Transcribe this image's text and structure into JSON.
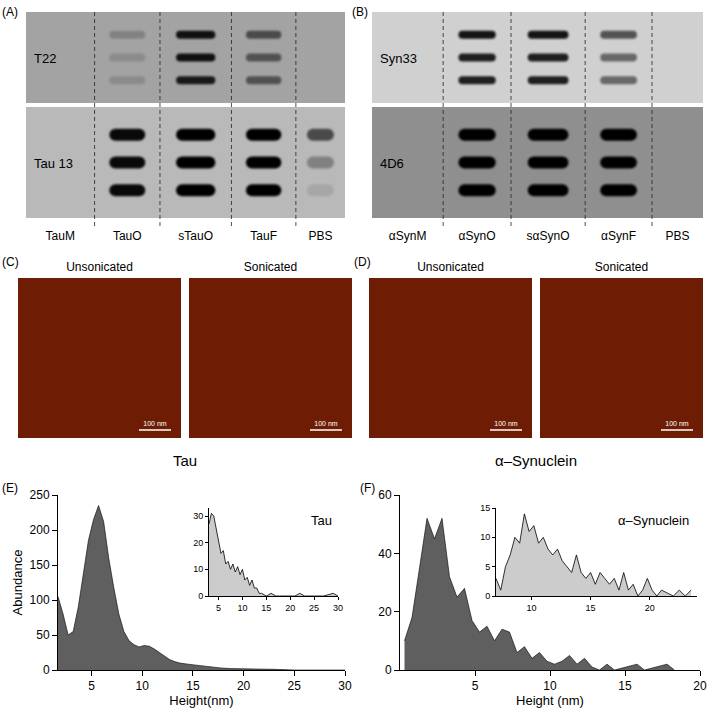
{
  "panels": {
    "A": {
      "label": "(A)",
      "columns": [
        "TauM",
        "TauO",
        "sTauO",
        "TauF",
        "PBS"
      ],
      "rows": [
        {
          "antibody": "T22",
          "intensity": [
            [
              0,
              0,
              0
            ],
            [
              0.2,
              0.15,
              0.15
            ],
            [
              0.9,
              0.9,
              0.85
            ],
            [
              0.55,
              0.5,
              0.5
            ],
            [
              0,
              0,
              0
            ]
          ]
        },
        {
          "antibody": "Tau 13",
          "intensity": [
            [
              0,
              0,
              0
            ],
            [
              0.95,
              0.95,
              0.95
            ],
            [
              1,
              1,
              1
            ],
            [
              1,
              1,
              1
            ],
            [
              0.6,
              0.3,
              0.1
            ]
          ]
        }
      ]
    },
    "B": {
      "label": "(B)",
      "columns": [
        "αSynM",
        "αSynO",
        "sαSynO",
        "αSynF",
        "PBS"
      ],
      "rows": [
        {
          "antibody": "Syn33",
          "intensity": [
            [
              0,
              0,
              0
            ],
            [
              0.9,
              0.85,
              0.85
            ],
            [
              0.9,
              0.85,
              0.85
            ],
            [
              0.6,
              0.5,
              0.5
            ],
            [
              0,
              0,
              0
            ]
          ]
        },
        {
          "antibody": "4D6",
          "intensity": [
            [
              0,
              0,
              0
            ],
            [
              1,
              1,
              1
            ],
            [
              1,
              1,
              1
            ],
            [
              1,
              1,
              1
            ],
            [
              0,
              0,
              0
            ]
          ]
        }
      ]
    },
    "C": {
      "label": "(C)",
      "title": "Tau",
      "images": [
        {
          "title": "Unsonicated",
          "scale_bar": "100 nm"
        },
        {
          "title": "Sonicated",
          "scale_bar": "100 nm"
        }
      ]
    },
    "D": {
      "label": "(D)",
      "title": "α–Synuclein",
      "images": [
        {
          "title": "Unsonicated",
          "scale_bar": "100 nm"
        },
        {
          "title": "Sonicated",
          "scale_bar": "100 nm"
        }
      ]
    }
  },
  "chart_data": [
    {
      "type": "area",
      "panel_label": "(E)",
      "x_label": "Height(nm)",
      "y_label": "Abundance",
      "x": [
        1.7,
        2.2,
        2.7,
        3.2,
        3.7,
        4.2,
        4.7,
        5.2,
        5.7,
        6.2,
        6.7,
        7.2,
        7.7,
        8.2,
        8.7,
        9.2,
        9.7,
        10.2,
        10.7,
        11.2,
        11.7,
        12.2,
        12.7,
        13.2,
        13.7,
        14.7,
        15.7,
        16.7,
        17.7,
        18.7,
        19.7,
        21,
        23,
        25,
        27,
        30
      ],
      "values": [
        105,
        80,
        50,
        55,
        90,
        140,
        185,
        215,
        235,
        212,
        160,
        118,
        80,
        55,
        42,
        36,
        33,
        35,
        34,
        30,
        25,
        20,
        15,
        12,
        10,
        8,
        6,
        4,
        3,
        2,
        2,
        1,
        1,
        0,
        0,
        0
      ],
      "color": "#5f5f5f",
      "xlim": [
        1.7,
        30
      ],
      "xticks": [
        5,
        10,
        15,
        20,
        25,
        30
      ],
      "ylim": [
        0,
        250
      ],
      "yticks": [
        0,
        50,
        100,
        150,
        200,
        250
      ],
      "grid": false,
      "inset": {
        "type": "area",
        "title": "Tau",
        "x": [
          3,
          3.5,
          4,
          4.5,
          5,
          5.5,
          6,
          6.5,
          7,
          7.5,
          8,
          8.5,
          9,
          9.5,
          10,
          10.5,
          11,
          11.5,
          12,
          12.5,
          13,
          13.5,
          14,
          15,
          16,
          17,
          18,
          20,
          21,
          22,
          23,
          25,
          27,
          29,
          30
        ],
        "values": [
          27,
          31,
          30,
          25,
          20,
          16,
          17,
          12,
          13,
          10,
          12,
          9,
          11,
          8,
          10,
          6,
          7,
          4,
          6,
          3,
          3,
          1,
          1,
          0,
          1,
          0,
          0,
          0,
          0,
          1,
          0,
          0,
          0,
          1,
          0
        ],
        "color": "#cccccc",
        "xlim": [
          3,
          30
        ],
        "xticks": [
          5,
          10,
          15,
          20,
          25,
          30
        ],
        "ylim": [
          0,
          33
        ],
        "yticks": [
          0,
          10,
          20,
          30
        ],
        "grid": false
      }
    },
    {
      "type": "area",
      "panel_label": "(F)",
      "x_label": "Height (nm)",
      "x": [
        0.3,
        0.8,
        1.3,
        1.8,
        2.3,
        2.8,
        3.3,
        3.8,
        4.3,
        4.8,
        5.3,
        5.8,
        6.3,
        6.8,
        7.3,
        7.8,
        8.3,
        8.8,
        9.3,
        9.8,
        10.3,
        10.8,
        11.3,
        11.8,
        12.3,
        12.8,
        13.3,
        13.8,
        14.3,
        15,
        15.8,
        16.3,
        17,
        17.8,
        18.3
      ],
      "values": [
        10,
        18,
        35,
        52,
        45,
        52,
        32,
        25,
        28,
        17,
        13,
        15,
        10,
        14,
        13,
        6,
        8,
        4,
        6,
        3,
        2,
        3,
        5,
        2,
        4,
        1,
        0,
        2,
        0,
        1,
        2,
        0,
        1,
        2,
        0
      ],
      "color": "#5f5f5f",
      "xlim": [
        0,
        20
      ],
      "xticks": [
        5,
        10,
        15,
        20
      ],
      "ylim": [
        0,
        60
      ],
      "yticks": [
        0,
        20,
        40,
        60
      ],
      "grid": false,
      "inset": {
        "type": "area",
        "title": "α–Synuclein",
        "x": [
          7,
          7.4,
          7.8,
          8.2,
          8.6,
          9,
          9.4,
          9.8,
          10.2,
          10.6,
          11,
          11.4,
          11.8,
          12.2,
          12.6,
          13,
          13.4,
          13.8,
          14.2,
          14.6,
          15,
          15.4,
          15.8,
          16.2,
          16.6,
          17,
          17.4,
          17.8,
          18.2,
          18.6,
          19,
          19.4,
          19.8,
          20.2,
          20.6,
          21,
          22,
          22.5,
          23,
          23.5
        ],
        "values": [
          3,
          1,
          5,
          7,
          10,
          9,
          14,
          11,
          12,
          9,
          10,
          8,
          7,
          8,
          6,
          5,
          4,
          7,
          4,
          3,
          4,
          2,
          4,
          3,
          2,
          3,
          1,
          4,
          1,
          2,
          0,
          1,
          3,
          1,
          0,
          1,
          0,
          1,
          0,
          1
        ],
        "color": "#cccccc",
        "xlim": [
          7,
          24
        ],
        "xticks": [
          10,
          15,
          20
        ],
        "ylim": [
          0,
          15
        ],
        "yticks": [
          0,
          5,
          10,
          15
        ],
        "grid": false
      }
    }
  ]
}
